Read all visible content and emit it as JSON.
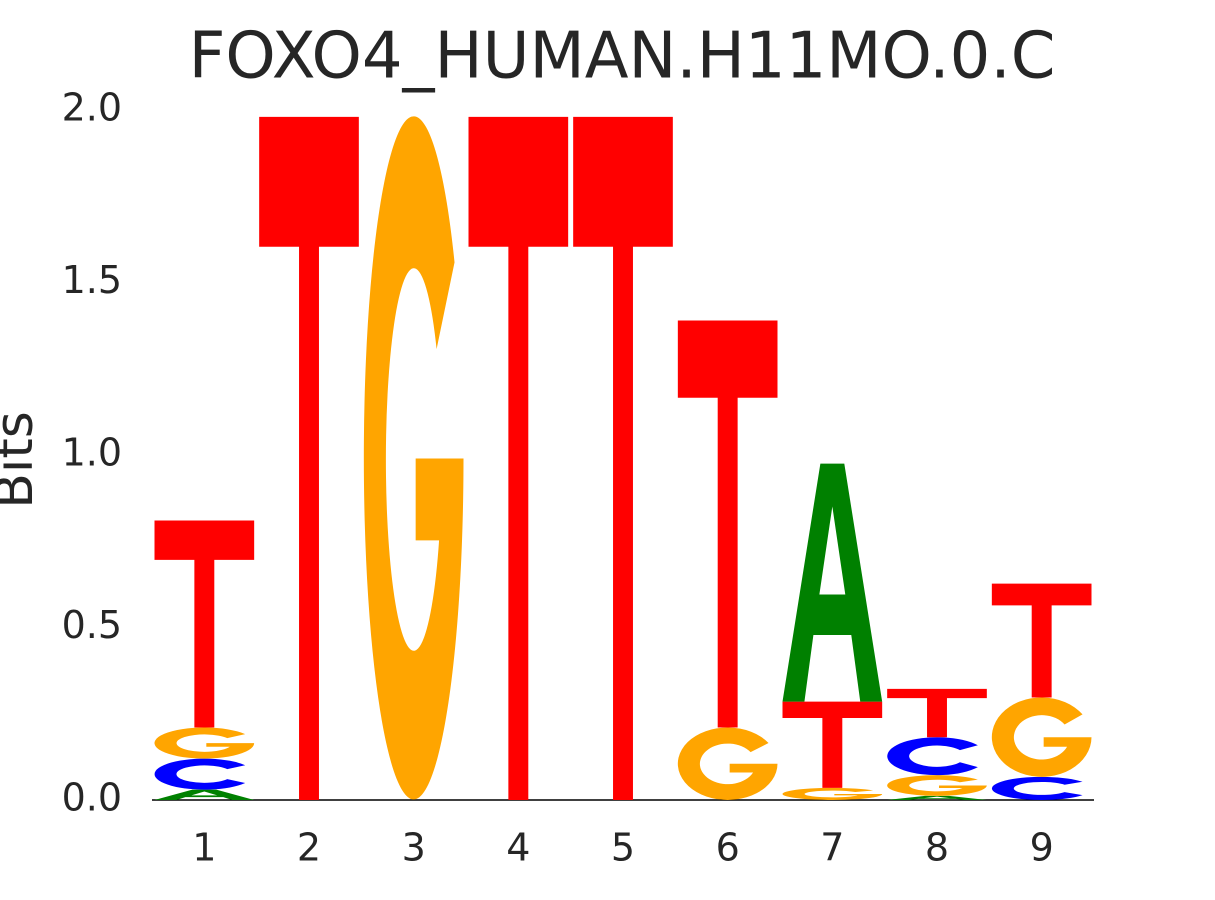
{
  "chart_data": {
    "type": "logo",
    "title": "FOXO4_HUMAN.H11MO.0.C",
    "ylabel": "Bits",
    "categories": [
      "1",
      "2",
      "3",
      "4",
      "5",
      "6",
      "7",
      "8",
      "9"
    ],
    "colors": {
      "A": "#008000",
      "C": "#0000ff",
      "G": "#ffa500",
      "T": "#ff0000"
    },
    "columns": [
      {
        "letters": [
          {
            "name": "A",
            "value": 0.03
          },
          {
            "name": "C",
            "value": 0.09
          },
          {
            "name": "G",
            "value": 0.09
          },
          {
            "name": "T",
            "value": 0.6
          }
        ]
      },
      {
        "letters": [
          {
            "name": "T",
            "value": 1.98
          }
        ]
      },
      {
        "letters": [
          {
            "name": "G",
            "value": 1.98
          }
        ]
      },
      {
        "letters": [
          {
            "name": "T",
            "value": 1.98
          }
        ]
      },
      {
        "letters": [
          {
            "name": "T",
            "value": 1.98
          }
        ]
      },
      {
        "letters": [
          {
            "name": "G",
            "value": 0.21
          },
          {
            "name": "T",
            "value": 1.18
          }
        ]
      },
      {
        "letters": [
          {
            "name": "G",
            "value": 0.035
          },
          {
            "name": "T",
            "value": 0.25
          },
          {
            "name": "A",
            "value": 0.69
          }
        ]
      },
      {
        "letters": [
          {
            "name": "A",
            "value": 0.012
          },
          {
            "name": "G",
            "value": 0.06
          },
          {
            "name": "C",
            "value": 0.11
          },
          {
            "name": "T",
            "value": 0.14
          }
        ]
      },
      {
        "letters": [
          {
            "name": "C",
            "value": 0.067
          },
          {
            "name": "G",
            "value": 0.23
          },
          {
            "name": "T",
            "value": 0.33
          }
        ]
      }
    ],
    "ylim": [
      0,
      2
    ],
    "yticks": [
      {
        "value": 0,
        "label": "0.0"
      },
      0.5,
      {
        "value": 1,
        "label": "1.0"
      },
      1.5,
      {
        "value": 2,
        "label": "2.0"
      }
    ]
  }
}
